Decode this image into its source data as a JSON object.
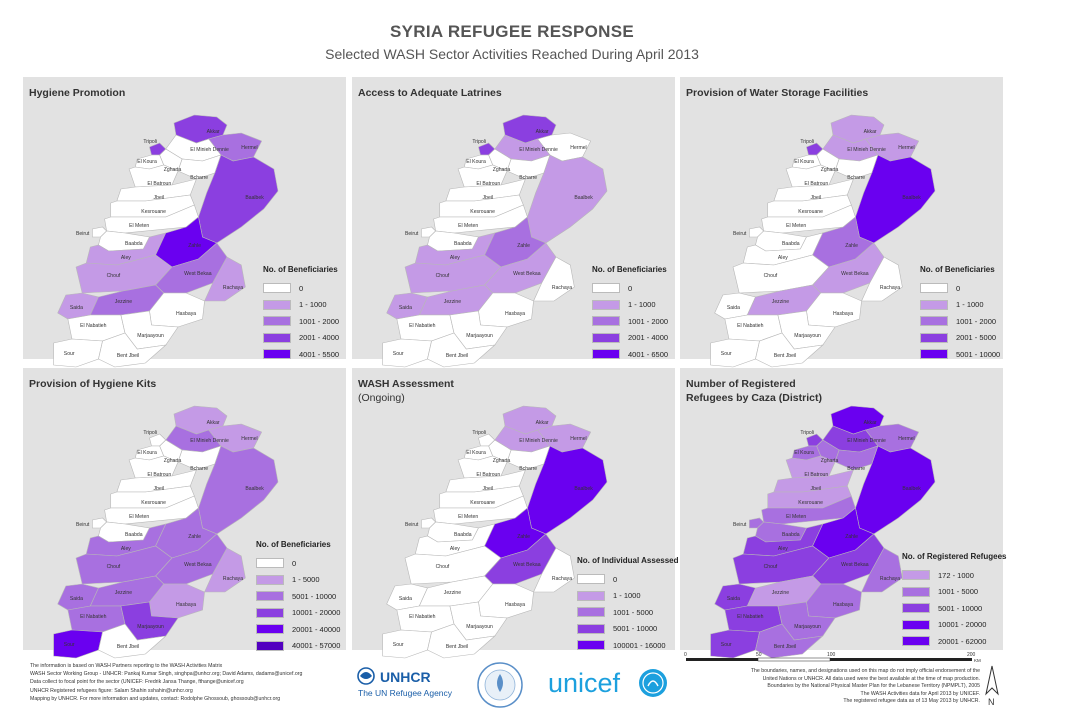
{
  "header": {
    "title": "SYRIA REFUGEE RESPONSE",
    "subtitle": "Selected WASH Sector Activities Reached During April 2013"
  },
  "palette": [
    "#ffffff",
    "#c49ae6",
    "#a870e0",
    "#8b3fe0",
    "#6a00f0"
  ],
  "panels": [
    {
      "title": "Hygiene Promotion",
      "title2": "",
      "legend_title": "No. of Beneficiaries",
      "legend": [
        "0",
        "1 - 1000",
        "1001 - 2000",
        "2001 - 4000",
        "4001 - 5500"
      ],
      "fills": {
        "Akkar": 3,
        "Hermel": 2,
        "Baalbek": 3,
        "Tripoli": 3,
        "Zahle": 4,
        "Minieh-Dennie": 0,
        "West Bekaa": 2,
        "Rachaya": 1,
        "Aley": 1,
        "Chouf": 1,
        "Saida": 1,
        "Jezzine": 2,
        "Hasbaya": 0
      }
    },
    {
      "title": "Access to Adequate Latrines",
      "title2": "",
      "legend_title": "No. of Beneficiaries",
      "legend": [
        "0",
        "1 - 1000",
        "1001 - 2000",
        "2001 - 4000",
        "4001 - 6500"
      ],
      "fills": {
        "Akkar": 3,
        "Hermel": 0,
        "Baalbek": 1,
        "Tripoli": 3,
        "Zahle": 2,
        "Minieh-Dennie": 1,
        "West Bekaa": 1,
        "Aley": 1,
        "Chouf": 1,
        "Saida": 1,
        "Jezzine": 1
      }
    },
    {
      "title": "Provision of Water Storage Facilities",
      "title2": "",
      "legend_title": "No. of Beneficiaries",
      "legend": [
        "0",
        "1 - 1000",
        "1001 - 2000",
        "2001 - 5000",
        "5001 - 10000"
      ],
      "fills": {
        "Akkar": 1,
        "Hermel": 1,
        "Baalbek": 4,
        "Tripoli": 3,
        "Zahle": 2,
        "Minieh-Dennie": 1,
        "West Bekaa": 1,
        "Jezzine": 1
      }
    },
    {
      "title": "Provision of Hygiene Kits",
      "title2": "",
      "legend_title": "No. of Beneficiaries",
      "legend": [
        "0",
        "1 - 5000",
        "5001 - 10000",
        "10001 - 20000",
        "20001 - 40000",
        "40001 - 57000"
      ],
      "fills": {
        "Akkar": 1,
        "Hermel": 1,
        "Baalbek": 2,
        "Minieh-Dennie": 2,
        "Zahle": 2,
        "West Bekaa": 2,
        "Rachaya": 1,
        "Aley": 2,
        "Chouf": 2,
        "Saida": 2,
        "Jezzine": 2,
        "Tyre": 4,
        "Marjaayoun": 3,
        "Nabatieh": 2,
        "Hasbaya": 1
      }
    },
    {
      "title": "WASH Assessment",
      "title2": "(Ongoing)",
      "legend_title": "No. of Individual Assessed",
      "legend": [
        "0",
        "1 - 1000",
        "1001 - 5000",
        "5001 - 10000",
        "100001 - 16000"
      ],
      "fills": {
        "Akkar": 1,
        "Hermel": 1,
        "Baalbek": 4,
        "Minieh-Dennie": 1,
        "Zahle": 4,
        "West Bekaa": 3,
        "Rachaya": 0,
        "Jezzine": 0
      }
    },
    {
      "title": "Number of Registered",
      "title2": "Refugees by Caza (District)",
      "legend_title": "No. of Registered Refugees",
      "legend": [
        "172 - 1000",
        "1001 - 5000",
        "5001 - 10000",
        "10001 - 20000",
        "20001 - 62000"
      ],
      "fills": {
        "Akkar": 4,
        "Hermel": 2,
        "Baalbek": 4,
        "Tripoli": 3,
        "Minieh-Dennie": 3,
        "Zgharta": 2,
        "Koura": 2,
        "Bcharre": 2,
        "Batroun": 1,
        "Jbeil": 1,
        "Kesrouan": 1,
        "Metn": 2,
        "Baabda": 2,
        "Beirut": 2,
        "Aley": 3,
        "Chouf": 3,
        "Zahle": 4,
        "West Bekaa": 3,
        "Rachaya": 2,
        "Saida": 3,
        "Jezzine": 1,
        "Tyre": 3,
        "Nabatieh": 3,
        "Marjaayoun": 2,
        "Hasbaya": 2,
        "Bint Jbeil": 2
      }
    }
  ],
  "district_labels": [
    "Akkar",
    "Tripoli",
    "El Minieh Dennie",
    "El Koura",
    "Zgharta",
    "Bcharre",
    "Hermel",
    "El Batroun",
    "Jbeil",
    "Kesrouane",
    "Baalbek",
    "Beirut",
    "El Meten",
    "Baabda",
    "Aley",
    "Zahle",
    "Chouf",
    "West Bekaa",
    "Jezzine",
    "Rachaya",
    "Saida",
    "El Nabatieh",
    "Hasbaya",
    "Marjaayoun",
    "Sour",
    "Bent Jbeil"
  ],
  "scale": {
    "labels": [
      "0",
      "50",
      "100",
      "200"
    ],
    "unit": "KM"
  },
  "north_label": "N",
  "footer_left": [
    "The information is based on WASH Partners reporting to the WASH Activities Matrix",
    "WASH Sector Working Group - UNHCR: Pankaj Kumar Singh, singhpa@unhcr.org; David Adams, dadams@unicef.org",
    "Data collect to focal point for the sector (UNICEF: Fredrik Jansa Thange, fthange@unicef.org",
    "UNHCR Registered refugees figure: Salam Shahin sshahin@unhcr.org",
    "Mapping by UNHCR. For more information and updates, contact: Rodolphe Ghossoub, ghossoub@unhcr.org"
  ],
  "footer_right": [
    "The boundaries, names, and designations used on this map do not imply official endorsement of the",
    "United Nations or UNHCR. All data used were the best available at the time of map production.",
    "Boundaries by the National Physical Master Plan for the Lebanese Territory (NPMPLT), 2005",
    "The WASH Activities data for April 2013 by UNICEF.",
    "The registered refugee data as of 13 May 2013 by UNHCR."
  ],
  "logos": {
    "unhcr_name": "UNHCR",
    "unhcr_tag": "The UN Refugee Agency",
    "wash_text": "WASH Working Group Lebanon",
    "unicef_name": "unicef"
  }
}
